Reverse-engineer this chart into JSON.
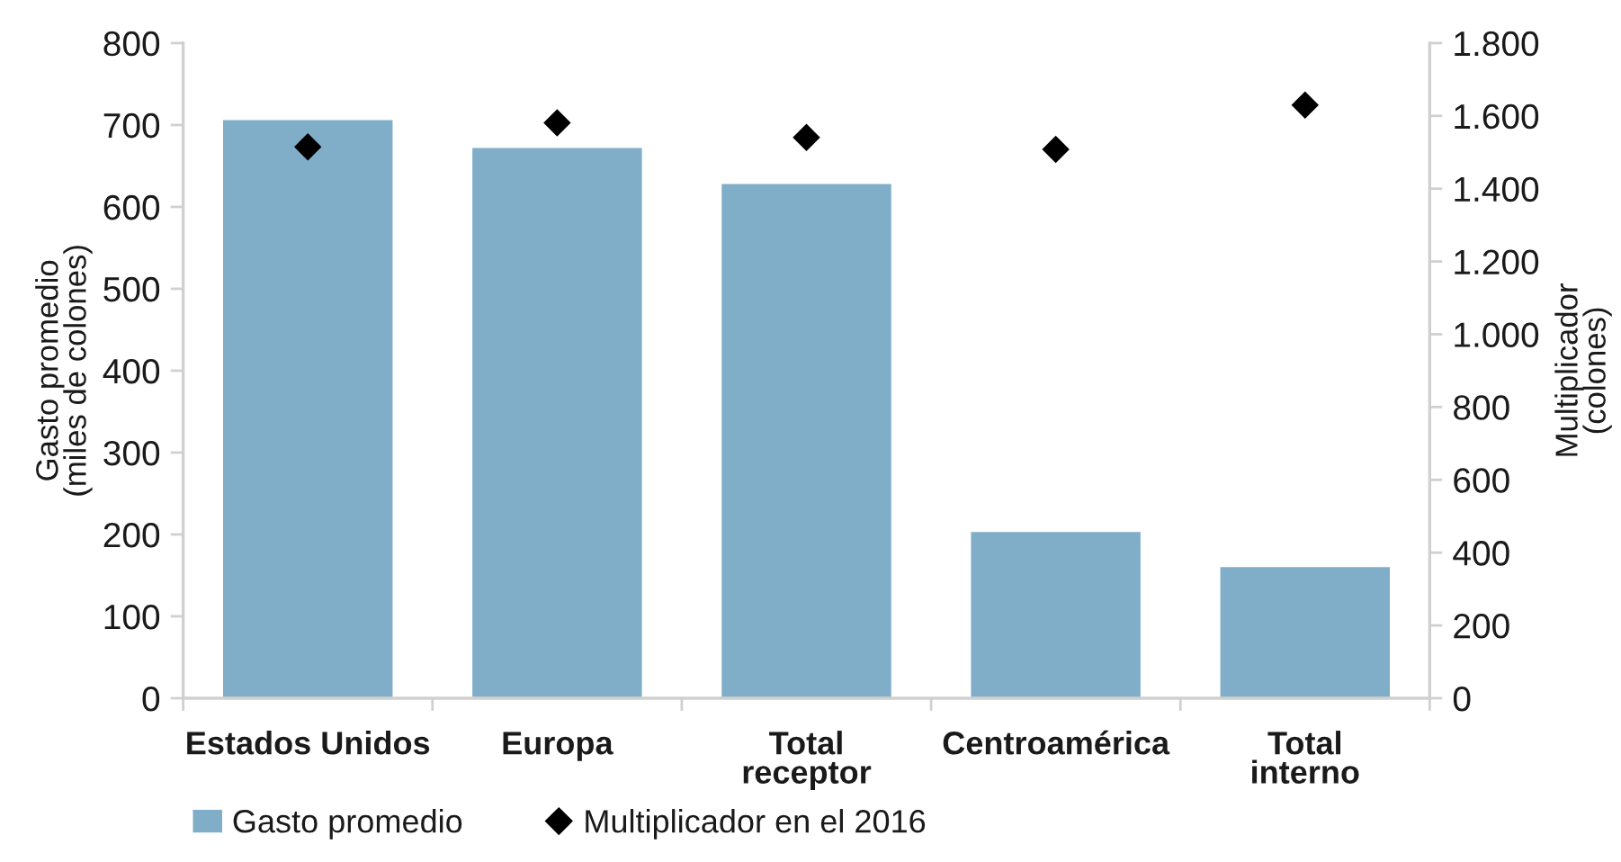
{
  "chart_data": {
    "type": "bar",
    "categories": [
      "Estados Unidos",
      "Europa",
      "Total\nreceptor",
      "Centroamérica",
      "Total\ninterno"
    ],
    "series": [
      {
        "name": "Gasto promedio",
        "color": "#80aec9",
        "values": [
          706,
          672,
          628,
          203,
          160
        ]
      },
      {
        "name": "Multiplicador en el 2016",
        "type": "scatter",
        "axis": "y2",
        "color": "#000000",
        "values": [
          1515,
          1581,
          1541,
          1508,
          1630
        ]
      }
    ],
    "ylabel": "Gasto promedio\n(miles de colones)",
    "y2label": "Multiplicador\n(colones)",
    "ylim": [
      0,
      800
    ],
    "yticks": [
      0,
      100,
      200,
      300,
      400,
      500,
      600,
      700,
      800
    ],
    "y2lim": [
      0,
      1800
    ],
    "y2ticks": [
      0,
      200,
      400,
      600,
      800,
      {
        "value": 1000,
        "label": "1.000"
      },
      {
        "value": 1200,
        "label": "1.200"
      },
      {
        "value": 1400,
        "label": "1.400"
      },
      {
        "value": 1600,
        "label": "1.600"
      },
      {
        "value": 1800,
        "label": "1.800"
      }
    ],
    "marker": "diamond",
    "legend": "bottom left",
    "grid": false
  }
}
